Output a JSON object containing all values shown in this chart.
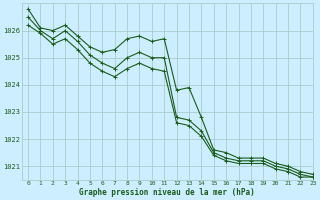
{
  "title": "Graphe pression niveau de la mer (hPa)",
  "background_color": "#cceeff",
  "grid_color": "#aacccc",
  "line_color": "#1a5c1a",
  "marker_color": "#1a5c1a",
  "xlim": [
    -0.5,
    23
  ],
  "ylim": [
    1020.5,
    1027.0
  ],
  "yticks": [
    1021,
    1022,
    1023,
    1024,
    1025,
    1026
  ],
  "xticks": [
    0,
    1,
    2,
    3,
    4,
    5,
    6,
    7,
    8,
    9,
    10,
    11,
    12,
    13,
    14,
    15,
    16,
    17,
    18,
    19,
    20,
    21,
    22,
    23
  ],
  "xtick_labels": [
    "0",
    "1",
    "2",
    "3",
    "4",
    "5",
    "6",
    "7",
    "8",
    "9",
    "10",
    "11",
    "12",
    "13",
    "14",
    "15",
    "16",
    "17",
    "18",
    "19",
    "20",
    "21",
    "22",
    "23"
  ],
  "series": [
    [
      1026.8,
      1026.1,
      1026.0,
      1026.2,
      1025.8,
      1025.4,
      1025.2,
      1025.3,
      1025.7,
      1025.8,
      1025.6,
      1025.7,
      1023.8,
      1023.9,
      1022.8,
      1021.6,
      1021.5,
      1021.3,
      1021.3,
      1021.3,
      1021.1,
      1021.0,
      1020.8,
      1020.7
    ],
    [
      1026.5,
      1026.0,
      1025.7,
      1026.0,
      1025.6,
      1025.1,
      1024.8,
      1024.6,
      1025.0,
      1025.2,
      1025.0,
      1025.0,
      1022.8,
      1022.7,
      1022.3,
      1021.5,
      1021.3,
      1021.2,
      1021.2,
      1021.2,
      1021.0,
      1020.9,
      1020.7,
      1020.6
    ],
    [
      1026.2,
      1025.9,
      1025.5,
      1025.7,
      1025.3,
      1024.8,
      1024.5,
      1024.3,
      1024.6,
      1024.8,
      1024.6,
      1024.5,
      1022.6,
      1022.5,
      1022.1,
      1021.4,
      1021.2,
      1021.1,
      1021.1,
      1021.1,
      1020.9,
      1020.8,
      1020.6,
      1020.6
    ]
  ]
}
